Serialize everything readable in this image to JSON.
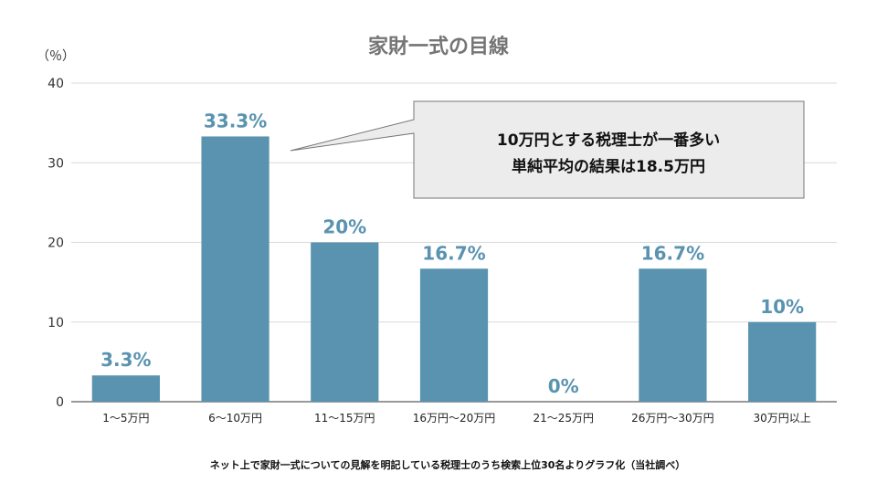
{
  "chart_data": {
    "type": "bar",
    "title": "家財一式の目線",
    "unit_label": "（％）",
    "categories": [
      "1〜5万円",
      "6〜10万円",
      "11〜15万円",
      "16万円〜20万円",
      "21〜25万円",
      "26万円〜30万円",
      "30万円以上"
    ],
    "values": [
      3.3,
      33.3,
      20,
      16.7,
      0,
      16.7,
      10
    ],
    "data_labels": [
      "3.3%",
      "33.3%",
      "20%",
      "16.7%",
      "0%",
      "16.7%",
      "10%"
    ],
    "ylim": [
      0,
      40
    ],
    "yticks": [
      0,
      10,
      20,
      30,
      40
    ],
    "grid": true,
    "bar_color": "#5a93b0",
    "label_color": "#5a93b0",
    "grid_color": "#d9d9d9"
  },
  "callout": {
    "line1": "10万円とする税理士が一番多い",
    "line2": "単純平均の結果は18.5万円",
    "background": "#ececec"
  },
  "footnote": "ネット上で家財一式についての見解を明記している税理士のうち検索上位30名よりグラフ化（当社調べ）"
}
